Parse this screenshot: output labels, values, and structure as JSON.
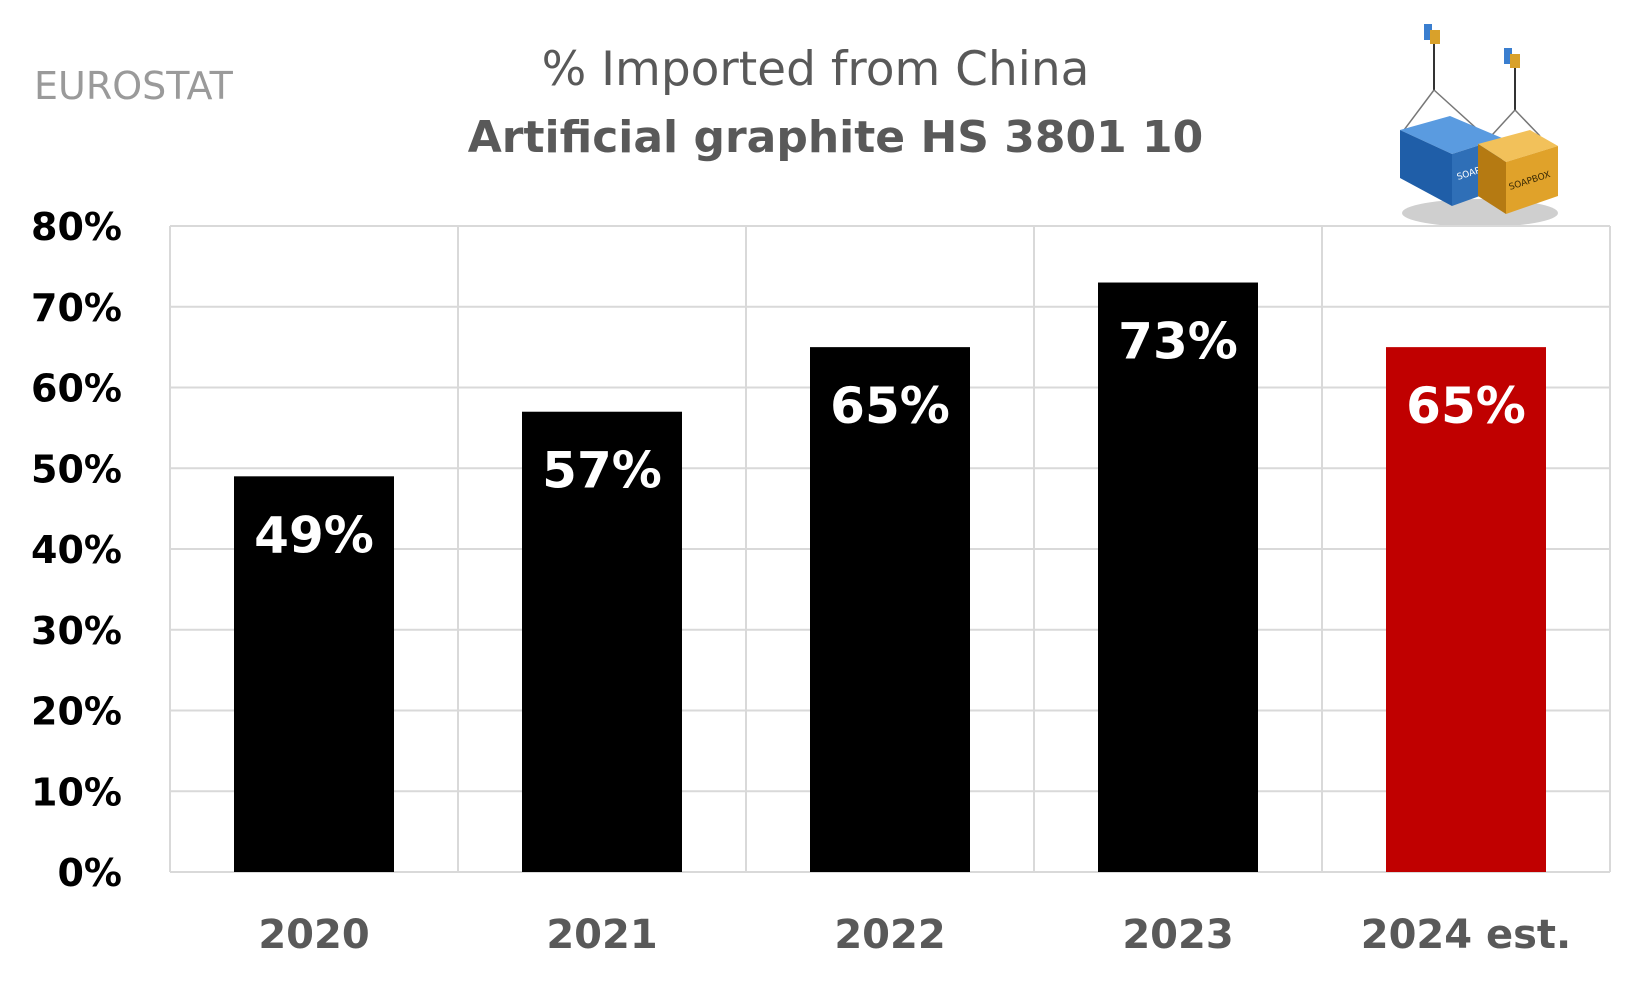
{
  "source_label": "EUROSTAT",
  "chart_data": {
    "type": "bar",
    "title": "% Imported from China",
    "subtitle": "Artificial graphite HS 3801 10",
    "categories": [
      "2020",
      "2021",
      "2022",
      "2023",
      "2024 est."
    ],
    "values": [
      49,
      57,
      65,
      73,
      65
    ],
    "data_labels": [
      "49%",
      "57%",
      "65%",
      "73%",
      "65%"
    ],
    "bar_colors": [
      "#000000",
      "#000000",
      "#000000",
      "#000000",
      "#c00000"
    ],
    "yticks": [
      "0%",
      "10%",
      "20%",
      "30%",
      "40%",
      "50%",
      "60%",
      "70%",
      "80%"
    ],
    "ylim": [
      0,
      80
    ],
    "xlabel": "",
    "ylabel": "",
    "grid": true,
    "legend": "none"
  },
  "logo": {
    "container_labels": [
      "SOAPBOX",
      "SOAPBOX"
    ],
    "colors": [
      "#2f6fb7",
      "#e0a22a"
    ]
  }
}
